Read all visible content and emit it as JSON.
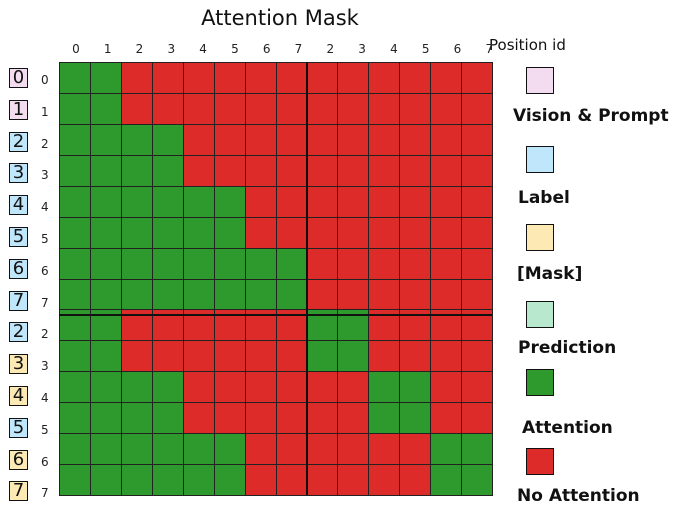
{
  "title": "Attention Mask",
  "position_id_label": "Position id",
  "column_ticks": [
    "0",
    "1",
    "2",
    "3",
    "4",
    "5",
    "6",
    "7",
    "2",
    "3",
    "4",
    "5",
    "6",
    "7"
  ],
  "rows": [
    {
      "position_id": "0",
      "tick": "0",
      "type": "vision_prompt"
    },
    {
      "position_id": "1",
      "tick": "1",
      "type": "vision_prompt"
    },
    {
      "position_id": "2",
      "tick": "2",
      "type": "label"
    },
    {
      "position_id": "3",
      "tick": "3",
      "type": "label"
    },
    {
      "position_id": "4",
      "tick": "4",
      "type": "label"
    },
    {
      "position_id": "5",
      "tick": "5",
      "type": "label"
    },
    {
      "position_id": "6",
      "tick": "6",
      "type": "label"
    },
    {
      "position_id": "7",
      "tick": "7",
      "type": "label"
    },
    {
      "position_id": "2",
      "tick": "2",
      "type": "label"
    },
    {
      "position_id": "3",
      "tick": "3",
      "type": "mask"
    },
    {
      "position_id": "4",
      "tick": "4",
      "type": "mask"
    },
    {
      "position_id": "5",
      "tick": "5",
      "type": "label"
    },
    {
      "position_id": "6",
      "tick": "6",
      "type": "mask"
    },
    {
      "position_id": "7",
      "tick": "7",
      "type": "mask"
    }
  ],
  "mask_matrix": [
    "GGRRRRRRRRRRRR",
    "GGRRRRRRRRRRRR",
    "GGGGRRRRRRRRRR",
    "GGGGRRRRRRRRRR",
    "GGGGGGRRRRRRRR",
    "GGGGGGRRRRRRRR",
    "GGGGGGGGRRRRRR",
    "GGGGGGGGRRRRRR",
    "GGRRRRRRGGRRRR",
    "GGRRRRRRGGRRRR",
    "GGGGRRRRRRGGRR",
    "GGGGRRRRRRGGRR",
    "GGGGGGRRRRRRGG",
    "GGGGGGRRRRRRGG"
  ],
  "colors": {
    "vision_prompt": "#f3dcf0",
    "label": "#bfe6fb",
    "mask": "#fde9b4",
    "prediction": "#b8e9cf",
    "attention": "#2e9a2e",
    "no_attention": "#dc2b28"
  },
  "legend": [
    {
      "key": "vision_prompt",
      "label": "Vision & Prompt"
    },
    {
      "key": "label",
      "label": "Label"
    },
    {
      "key": "mask",
      "label": "[Mask]"
    },
    {
      "key": "prediction",
      "label": "Prediction"
    },
    {
      "key": "attention",
      "label": "Attention"
    },
    {
      "key": "no_attention",
      "label": "No Attention"
    }
  ]
}
